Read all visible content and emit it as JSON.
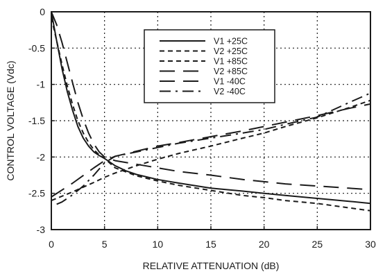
{
  "chart_data": {
    "type": "line",
    "title": "",
    "xlabel": "RELATIVE ATTENUATION (dB)",
    "ylabel": "CONTROL VOLTAGE (Vdc)",
    "xlim": [
      0,
      30
    ],
    "ylim": [
      -3,
      0
    ],
    "xticks": [
      0,
      5,
      10,
      15,
      20,
      25,
      30
    ],
    "xtick_labels": [
      "0",
      "5",
      "10",
      "15",
      "20",
      "25",
      "30"
    ],
    "yticks": [
      0,
      -0.5,
      -1,
      -1.5,
      -2,
      -2.5,
      -3
    ],
    "ytick_labels": [
      "0",
      "-0.5",
      "-1",
      "-1.5",
      "-2",
      "-2.5",
      "-3"
    ],
    "grid": true,
    "legend_position": "top-center",
    "line_color": "#1a1a1a",
    "series": [
      {
        "name": "V1 +25C",
        "dash": "solid",
        "x": [
          0,
          0.5,
          1,
          1.5,
          2,
          2.5,
          3,
          3.5,
          4,
          4.5,
          5,
          6,
          7,
          8,
          10,
          12,
          15,
          18,
          20,
          22,
          25,
          28,
          30
        ],
        "y": [
          0,
          -0.4,
          -0.78,
          -1.1,
          -1.36,
          -1.58,
          -1.74,
          -1.85,
          -1.93,
          -1.98,
          -2.02,
          -2.12,
          -2.19,
          -2.24,
          -2.31,
          -2.36,
          -2.43,
          -2.47,
          -2.5,
          -2.53,
          -2.57,
          -2.61,
          -2.64
        ]
      },
      {
        "name": "V2 +25C",
        "dash": "short-dash",
        "x": [
          0,
          2,
          4,
          5,
          6,
          8,
          10,
          12,
          15,
          18,
          20,
          22,
          25,
          28,
          30
        ],
        "y": [
          -2.6,
          -2.48,
          -2.35,
          -2.28,
          -2.22,
          -2.12,
          -2.03,
          -1.95,
          -1.85,
          -1.74,
          -1.67,
          -1.58,
          -1.46,
          -1.32,
          -1.22
        ]
      },
      {
        "name": "V1 +85C",
        "dash": "short-dash",
        "x": [
          0,
          0.5,
          1,
          1.5,
          2,
          2.5,
          3,
          3.5,
          4,
          4.5,
          5,
          6,
          8,
          10,
          12,
          15,
          18,
          20,
          22,
          25,
          28,
          30
        ],
        "y": [
          -0.08,
          -0.4,
          -0.72,
          -1.02,
          -1.28,
          -1.5,
          -1.67,
          -1.8,
          -1.9,
          -1.97,
          -2.02,
          -2.15,
          -2.26,
          -2.33,
          -2.39,
          -2.46,
          -2.53,
          -2.56,
          -2.6,
          -2.64,
          -2.7,
          -2.74
        ]
      },
      {
        "name": "V2 +85C",
        "dash": "long-dash",
        "x": [
          0,
          2,
          4,
          5,
          6,
          8,
          10,
          12,
          15,
          18,
          20,
          22,
          25,
          28,
          30
        ],
        "y": [
          -2.55,
          -2.36,
          -2.15,
          -2.05,
          -1.99,
          -1.92,
          -1.85,
          -1.8,
          -1.72,
          -1.64,
          -1.58,
          -1.52,
          -1.43,
          -1.33,
          -1.27
        ]
      },
      {
        "name": "V1 -40C",
        "dash": "long-dash",
        "x": [
          0,
          0.5,
          1,
          1.5,
          2,
          2.5,
          3,
          3.5,
          4,
          4.5,
          5,
          6,
          8,
          10,
          12,
          15,
          18,
          20,
          22,
          25,
          28,
          30
        ],
        "y": [
          0,
          -0.18,
          -0.42,
          -0.7,
          -0.98,
          -1.25,
          -1.48,
          -1.67,
          -1.82,
          -1.93,
          -2.0,
          -2.05,
          -2.1,
          -2.15,
          -2.2,
          -2.25,
          -2.31,
          -2.34,
          -2.37,
          -2.4,
          -2.43,
          -2.45
        ]
      },
      {
        "name": "V2 -40C",
        "dash": "dash-dot",
        "x": [
          0.5,
          1,
          2,
          3,
          4,
          5,
          6,
          8,
          10,
          12,
          15,
          18,
          20,
          22,
          25,
          28,
          30
        ],
        "y": [
          -2.65,
          -2.62,
          -2.52,
          -2.4,
          -2.25,
          -2.08,
          -1.99,
          -1.93,
          -1.87,
          -1.81,
          -1.74,
          -1.67,
          -1.62,
          -1.55,
          -1.45,
          -1.25,
          -1.12
        ]
      }
    ]
  }
}
